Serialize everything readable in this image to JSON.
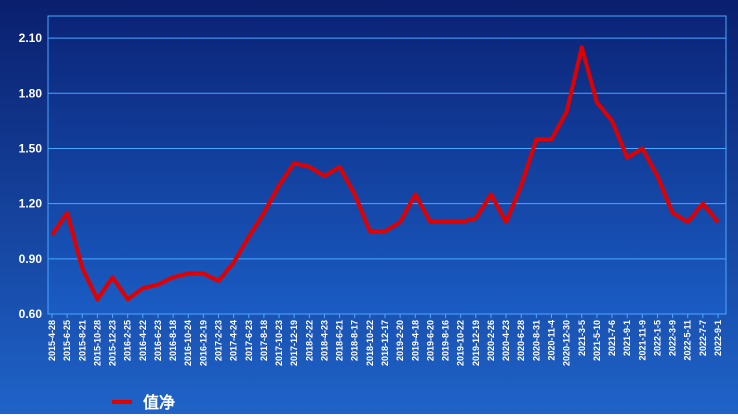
{
  "chart_data": {
    "type": "line",
    "categories": [
      "2015-4-28",
      "2015-6-25",
      "2015-8-21",
      "2015-10-28",
      "2015-12-23",
      "2016-2-25",
      "2016-4-22",
      "2016-6-23",
      "2016-8-18",
      "2016-10-24",
      "2016-12-19",
      "2017-2-23",
      "2017-4-24",
      "2017-6-23",
      "2017-8-18",
      "2017-10-23",
      "2017-12-19",
      "2018-2-22",
      "2018-4-23",
      "2018-6-21",
      "2018-8-17",
      "2018-10-22",
      "2018-12-17",
      "2019-2-20",
      "2019-4-18",
      "2019-6-20",
      "2019-8-16",
      "2019-10-22",
      "2019-12-19",
      "2020-2-26",
      "2020-4-23",
      "2020-6-28",
      "2020-8-31",
      "2020-11-4",
      "2020-12-30",
      "2021-3-5",
      "2021-5-10",
      "2021-7-6",
      "2021-9-1",
      "2021-11-9",
      "2022-1-5",
      "2022-3-9",
      "2022-5-11",
      "2022-7-7",
      "2022-9-1"
    ],
    "series": [
      {
        "name": "值净",
        "color": "#e00000",
        "values": [
          1.03,
          1.15,
          0.85,
          0.68,
          0.8,
          0.68,
          0.74,
          0.76,
          0.8,
          0.82,
          0.82,
          0.78,
          0.88,
          1.02,
          1.15,
          1.3,
          1.42,
          1.4,
          1.35,
          1.4,
          1.25,
          1.05,
          1.05,
          1.1,
          1.25,
          1.1,
          1.1,
          1.1,
          1.12,
          1.25,
          1.1,
          1.3,
          1.55,
          1.55,
          1.7,
          2.05,
          1.75,
          1.65,
          1.45,
          1.5,
          1.35,
          1.15,
          1.1,
          1.2,
          1.1
        ]
      }
    ],
    "ylim": [
      0.6,
      2.22
    ],
    "yticks": [
      {
        "value": 0.6,
        "label": "0.60"
      },
      {
        "value": 0.9,
        "label": "0.90"
      },
      {
        "value": 1.2,
        "label": "1.20"
      },
      {
        "value": 1.5,
        "label": "1.50"
      },
      {
        "value": 1.8,
        "label": "1.80"
      },
      {
        "value": 2.1,
        "label": "2.10"
      }
    ],
    "grid": true
  }
}
